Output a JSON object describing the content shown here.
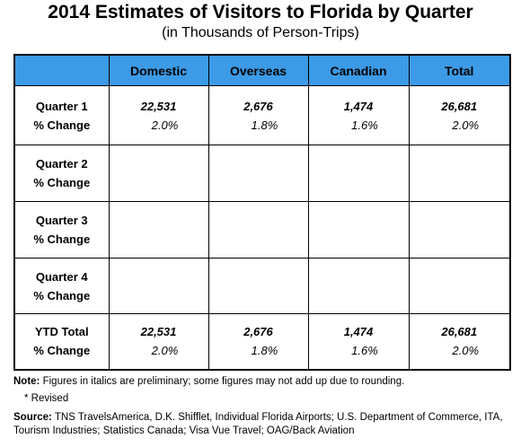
{
  "header": {
    "title": "2014 Estimates of Visitors to Florida by Quarter",
    "subtitle": "(in Thousands of Person-Trips)"
  },
  "table": {
    "columns": [
      "Domestic",
      "Overseas",
      "Canadian",
      "Total"
    ],
    "rows": [
      {
        "labels": [
          "Quarter 1",
          "% Change"
        ],
        "cells": [
          [
            "22,531",
            "2.0%"
          ],
          [
            "2,676",
            "1.8%"
          ],
          [
            "1,474",
            "1.6%"
          ],
          [
            "26,681",
            "2.0%"
          ]
        ]
      },
      {
        "labels": [
          "Quarter 2",
          "% Change"
        ]
      },
      {
        "labels": [
          "Quarter 3",
          "% Change"
        ]
      },
      {
        "labels": [
          "Quarter 4",
          "% Change"
        ]
      },
      {
        "labels": [
          "YTD Total",
          "% Change"
        ],
        "cells": [
          [
            "22,531",
            "2.0%"
          ],
          [
            "2,676",
            "1.8%"
          ],
          [
            "1,474",
            "1.6%"
          ],
          [
            "26,681",
            "2.0%"
          ]
        ]
      }
    ]
  },
  "notes": {
    "note_label": "Note:",
    "note_text": "Figures in italics are preliminary; some figures may not add up due to rounding.",
    "revised": "* Revised",
    "source_label": "Source:",
    "source_text": "TNS TravelsAmerica, D.K. Shifflet, Individual Florida Airports; U.S. Department of Commerce,  ITA, Tourism Industries; Statistics Canada; Visa Vue Travel; OAG/Back Aviation"
  }
}
